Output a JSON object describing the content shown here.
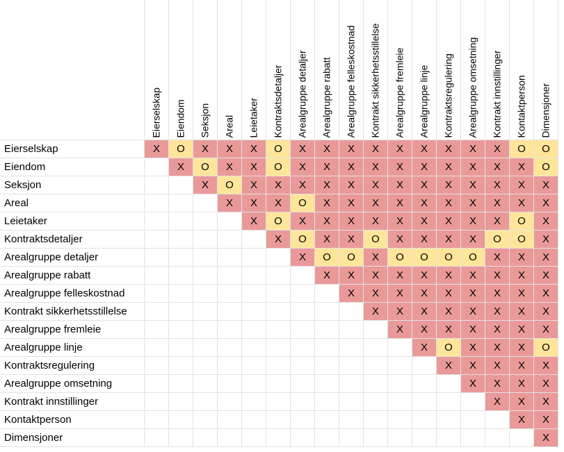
{
  "columns": [
    "Eierselskap",
    "Eiendom",
    "Seksjon",
    "Areal",
    "Leietaker",
    "Kontraktsdetaljer",
    "Arealgruppe detaljer",
    "Arealgruppe rabatt",
    "Arealgruppe felleskostnad",
    "Kontrakt sikkerhetsstillelse",
    "Arealgruppe  fremleie",
    "Arealgruppe linje",
    "Kontraktsregulering",
    "Arealgruppe omsetning",
    "Kontrakt innstillinger",
    "Kontaktperson",
    "Dimensjoner"
  ],
  "rows": [
    {
      "label": "Eierselskap",
      "values": [
        "X",
        "O",
        "X",
        "X",
        "X",
        "O",
        "X",
        "X",
        "X",
        "X",
        "X",
        "X",
        "X",
        "X",
        "X",
        "O",
        "O"
      ]
    },
    {
      "label": "Eiendom",
      "values": [
        "",
        "X",
        "O",
        "X",
        "X",
        "O",
        "X",
        "X",
        "X",
        "X",
        "X",
        "X",
        "X",
        "X",
        "X",
        "X",
        "O"
      ]
    },
    {
      "label": "Seksjon",
      "values": [
        "",
        "",
        "X",
        "O",
        "X",
        "X",
        "X",
        "X",
        "X",
        "X",
        "X",
        "X",
        "X",
        "X",
        "X",
        "X",
        "X"
      ]
    },
    {
      "label": "Areal",
      "values": [
        "",
        "",
        "",
        "X",
        "X",
        "X",
        "O",
        "X",
        "X",
        "X",
        "X",
        "X",
        "X",
        "X",
        "X",
        "X",
        "X"
      ]
    },
    {
      "label": "Leietaker",
      "values": [
        "",
        "",
        "",
        "",
        "X",
        "O",
        "X",
        "X",
        "X",
        "X",
        "X",
        "X",
        "X",
        "X",
        "X",
        "O",
        "X"
      ]
    },
    {
      "label": "Kontraktsdetaljer",
      "values": [
        "",
        "",
        "",
        "",
        "",
        "X",
        "O",
        "X",
        "X",
        "O",
        "X",
        "X",
        "X",
        "X",
        "O",
        "O",
        "X"
      ]
    },
    {
      "label": "Arealgruppe detaljer",
      "values": [
        "",
        "",
        "",
        "",
        "",
        "",
        "X",
        "O",
        "O",
        "X",
        "O",
        "O",
        "O",
        "O",
        "X",
        "X",
        "X"
      ]
    },
    {
      "label": "Arealgruppe rabatt",
      "values": [
        "",
        "",
        "",
        "",
        "",
        "",
        "",
        "X",
        "X",
        "X",
        "X",
        "X",
        "X",
        "X",
        "X",
        "X",
        "X"
      ]
    },
    {
      "label": "Arealgruppe felleskostnad",
      "values": [
        "",
        "",
        "",
        "",
        "",
        "",
        "",
        "",
        "X",
        "X",
        "X",
        "X",
        "X",
        "X",
        "X",
        "X",
        "X"
      ]
    },
    {
      "label": "Kontrakt sikkerhetsstillelse",
      "values": [
        "",
        "",
        "",
        "",
        "",
        "",
        "",
        "",
        "",
        "X",
        "X",
        "X",
        "X",
        "X",
        "X",
        "X",
        "X"
      ]
    },
    {
      "label": "Arealgruppe  fremleie",
      "values": [
        "",
        "",
        "",
        "",
        "",
        "",
        "",
        "",
        "",
        "",
        "X",
        "X",
        "X",
        "X",
        "X",
        "X",
        "X"
      ]
    },
    {
      "label": "Arealgruppe linje",
      "values": [
        "",
        "",
        "",
        "",
        "",
        "",
        "",
        "",
        "",
        "",
        "",
        "X",
        "O",
        "X",
        "X",
        "X",
        "O"
      ]
    },
    {
      "label": "Kontraktsregulering",
      "values": [
        "",
        "",
        "",
        "",
        "",
        "",
        "",
        "",
        "",
        "",
        "",
        "",
        "X",
        "X",
        "X",
        "X",
        "X"
      ]
    },
    {
      "label": "Arealgruppe omsetning",
      "values": [
        "",
        "",
        "",
        "",
        "",
        "",
        "",
        "",
        "",
        "",
        "",
        "",
        "",
        "X",
        "X",
        "X",
        "X"
      ]
    },
    {
      "label": "Kontrakt innstillinger",
      "values": [
        "",
        "",
        "",
        "",
        "",
        "",
        "",
        "",
        "",
        "",
        "",
        "",
        "",
        "",
        "X",
        "X",
        "X"
      ]
    },
    {
      "label": "Kontaktperson",
      "values": [
        "",
        "",
        "",
        "",
        "",
        "",
        "",
        "",
        "",
        "",
        "",
        "",
        "",
        "",
        "",
        "X",
        "X"
      ]
    },
    {
      "label": "Dimensjoner",
      "values": [
        "",
        "",
        "",
        "",
        "",
        "",
        "",
        "",
        "",
        "",
        "",
        "",
        "",
        "",
        "",
        "",
        "X"
      ]
    }
  ],
  "colors": {
    "x_fill": "#ea9999",
    "o_fill": "#ffe599",
    "gridline": "#e2e2e2"
  }
}
